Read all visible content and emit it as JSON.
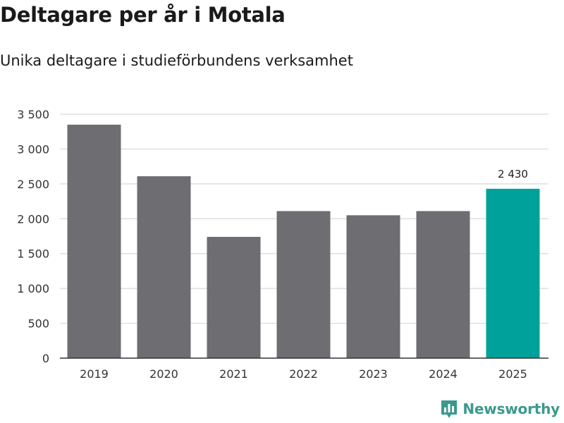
{
  "header": {
    "title": "Deltagare per år i Motala",
    "subtitle": "Unika deltagare i studieförbundens verksamhet"
  },
  "brand": {
    "name": "Newsworthy",
    "icon": "newsworthy-logo-icon"
  },
  "colors": {
    "bar_default": "#6e6d72",
    "bar_highlight": "#00a19a",
    "grid": "#d9d9d9",
    "axis": "#333333",
    "brand": "#3a9a8e"
  },
  "chart_data": {
    "type": "bar",
    "categories": [
      "2019",
      "2020",
      "2021",
      "2022",
      "2023",
      "2024",
      "2025"
    ],
    "values": [
      3350,
      2610,
      1740,
      2110,
      2050,
      2110,
      2430
    ],
    "highlight_index": 6,
    "data_labels": [
      {
        "index": 6,
        "text": "2 430"
      }
    ],
    "y_ticks": [
      0,
      500,
      1000,
      1500,
      2000,
      2500,
      3000,
      3500
    ],
    "y_tick_labels": [
      "0",
      "500",
      "1 000",
      "1 500",
      "2 000",
      "2 500",
      "3 000",
      "3 500"
    ],
    "ylim": [
      0,
      3500
    ],
    "grid": true,
    "title": "Deltagare per år i Motala",
    "subtitle": "Unika deltagare i studieförbundens verksamhet",
    "xlabel": "",
    "ylabel": ""
  }
}
